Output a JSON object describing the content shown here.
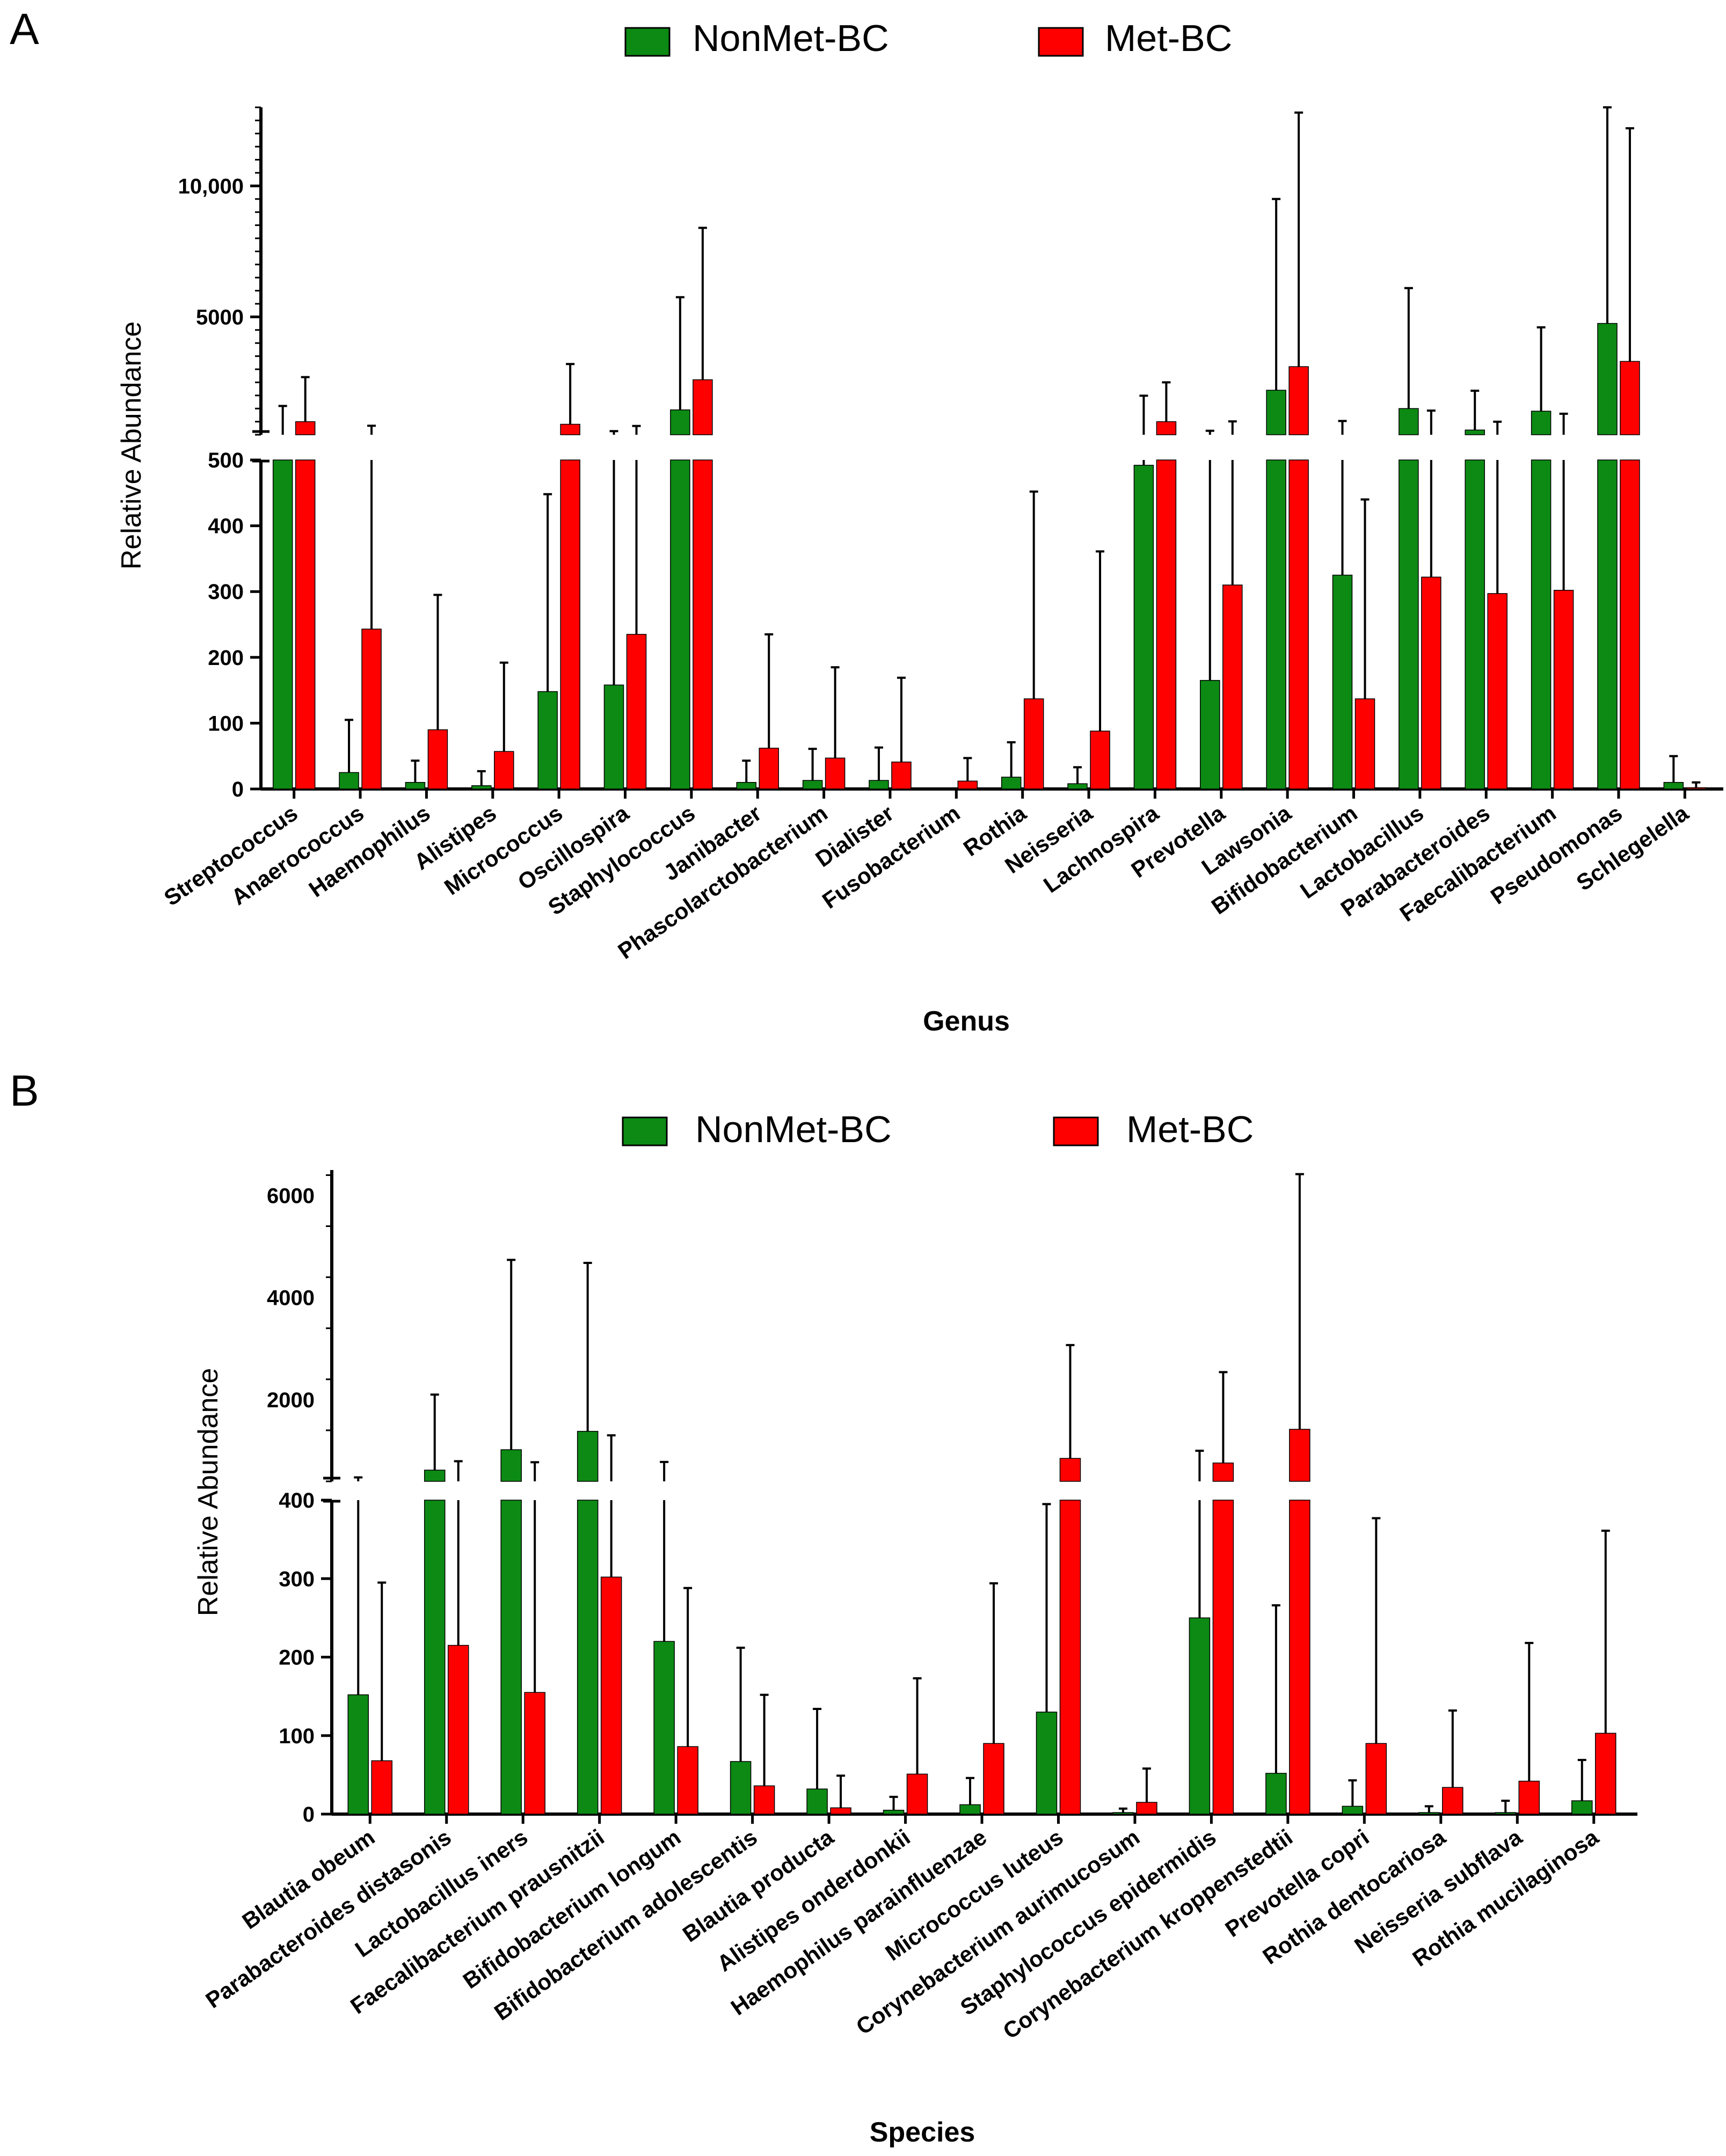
{
  "colors": {
    "nonmet": "#0c8a14",
    "met": "#ff0000",
    "axis": "#000000",
    "error": "#000000"
  },
  "legend": {
    "nonmet_label": "NonMet-BC",
    "met_label": "Met-BC"
  },
  "chart_data": [
    {
      "panel": "A",
      "type": "bar",
      "title": "",
      "xlabel": "Genus",
      "ylabel": "Relative Abundance",
      "y_axis_break": {
        "lower_range": [
          0,
          500
        ],
        "upper_range": [
          500,
          13000
        ]
      },
      "lower_ticks": [
        0,
        100,
        200,
        300,
        400,
        500
      ],
      "upper_tick_labels": [
        {
          "value": 5000,
          "label": "5000"
        },
        {
          "value": 10000,
          "label": "10,000"
        }
      ],
      "categories": [
        "Streptococcus",
        "Anaerococcus",
        "Haemophilus",
        "Alistipes",
        "Micrococcus",
        "Oscillospira",
        "Staphylococcus",
        "Janibacter",
        "Phascolarctobacterium",
        "Dialister",
        "Fusobacterium",
        "Rothia",
        "Neisseria",
        "Lachnospira",
        "Prevotella",
        "Lawsonia",
        "Bifidobacterium",
        "Lactobacillus",
        "Parabacteroides",
        "Faecalibacterium",
        "Pseudomonas",
        "Schlegelella"
      ],
      "series": [
        {
          "name": "NonMet-BC",
          "values": [
            500,
            25,
            10,
            5,
            148,
            158,
            1450,
            10,
            13,
            13,
            0,
            18,
            8,
            492,
            165,
            2200,
            325,
            1500,
            680,
            1400,
            4750,
            10
          ],
          "errors": [
            1100,
            80,
            33,
            22,
            300,
            480,
            4300,
            33,
            48,
            50,
            0,
            53,
            25,
            1500,
            485,
            7300,
            700,
            4600,
            1500,
            3200,
            9000,
            40
          ]
        },
        {
          "name": "Met-BC",
          "values": [
            1000,
            243,
            90,
            57,
            900,
            235,
            2600,
            62,
            47,
            41,
            12,
            137,
            88,
            1000,
            310,
            3100,
            137,
            322,
            297,
            302,
            3300,
            2
          ],
          "errors": [
            1700,
            600,
            205,
            135,
            2300,
            600,
            5800,
            173,
            138,
            128,
            35,
            315,
            273,
            1500,
            700,
            9700,
            303,
            1100,
            700,
            1000,
            8900,
            8
          ]
        }
      ]
    },
    {
      "panel": "B",
      "type": "bar",
      "title": "",
      "xlabel": "Species",
      "ylabel": "Relative Abundance",
      "y_axis_break": {
        "lower_range": [
          0,
          400
        ],
        "upper_range": [
          400,
          6500
        ]
      },
      "lower_ticks": [
        0,
        100,
        200,
        300,
        400
      ],
      "upper_tick_labels": [
        {
          "value": 2000,
          "label": "2000"
        },
        {
          "value": 4000,
          "label": "4000"
        },
        {
          "value": 6000,
          "label": "6000"
        }
      ],
      "categories": [
        "Blautia obeum",
        "Parabacteroides distasonis",
        "Lactobacillus iners",
        "Faecalibacterium prausnitzii",
        "Bifidobacterium longum",
        "Bifidobacterium adolescentis",
        "Blautia producta",
        "Alistipes onderdonkii",
        "Haemophilus parainfluenzae",
        "Micrococcus luteus",
        "Corynebacterium aurimucosum",
        "Staphylococcus epidermidis",
        "Corynebacterium kroppenstedtii",
        "Prevotella copri",
        "Rothia dentocariosa",
        "Neisseria subflava",
        "Rothia mucilaginosa"
      ],
      "series": [
        {
          "name": "NonMet-BC",
          "values": [
            152,
            620,
            1020,
            1380,
            220,
            67,
            32,
            5,
            12,
            130,
            2,
            250,
            52,
            10,
            2,
            2,
            17
          ],
          "errors": [
            325,
            1480,
            3720,
            3300,
            560,
            145,
            102,
            17,
            34,
            265,
            5,
            750,
            214,
            33,
            8,
            15,
            52
          ]
        },
        {
          "name": "Met-BC",
          "values": [
            68,
            215,
            155,
            302,
            86,
            36,
            8,
            51,
            90,
            850,
            15,
            760,
            1420,
            90,
            34,
            42,
            103
          ],
          "errors": [
            227,
            580,
            620,
            1000,
            202,
            116,
            41,
            122,
            204,
            2220,
            43,
            1780,
            5000,
            287,
            98,
            176,
            258
          ]
        }
      ]
    }
  ]
}
